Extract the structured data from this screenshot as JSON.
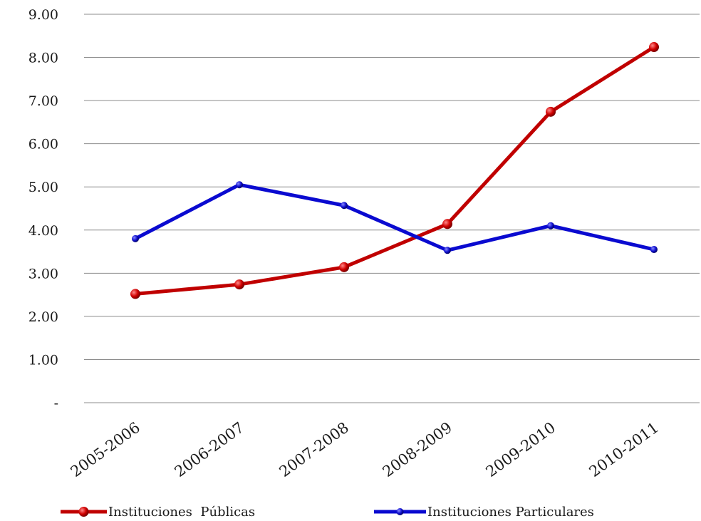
{
  "chart_data": {
    "type": "line",
    "title": "",
    "xlabel": "",
    "ylabel": "",
    "categories": [
      "2005-2006",
      "2006-2007",
      "2007-2008",
      "2008-2009",
      "2009-2010",
      "2010-2011"
    ],
    "series": [
      {
        "name": "Instituciones  Públicas",
        "color": "#c00000",
        "values": [
          2.52,
          2.74,
          3.14,
          4.14,
          6.74,
          8.24
        ]
      },
      {
        "name": "Instituciones Particulares",
        "color": "#0a0ad0",
        "values": [
          3.8,
          5.05,
          4.57,
          3.53,
          4.1,
          3.55
        ]
      }
    ],
    "ylim": [
      0,
      9
    ],
    "yticks": [
      {
        "value": 0,
        "label": "-"
      },
      {
        "value": 1,
        "label": "1.00"
      },
      {
        "value": 2,
        "label": "2.00"
      },
      {
        "value": 3,
        "label": "3.00"
      },
      {
        "value": 4,
        "label": "4.00"
      },
      {
        "value": 5,
        "label": "5.00"
      },
      {
        "value": 6,
        "label": "6.00"
      },
      {
        "value": 7,
        "label": "7.00"
      },
      {
        "value": 8,
        "label": "8.00"
      },
      {
        "value": 9,
        "label": "9.00"
      }
    ],
    "grid": true,
    "legend_position": "bottom"
  }
}
